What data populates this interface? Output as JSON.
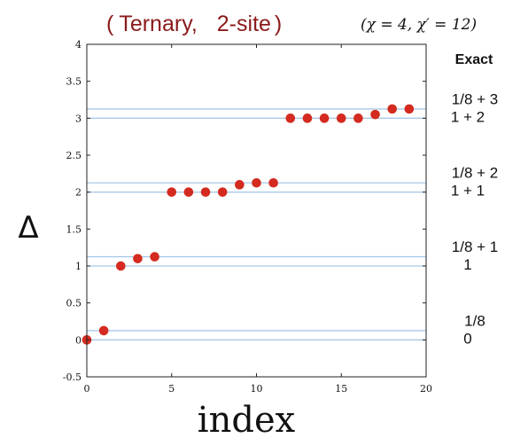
{
  "chart_data": {
    "type": "scatter",
    "title_main": "Ternary,",
    "title_site": "2-site",
    "title_open": "(",
    "title_close": ")",
    "title_params": "(χ = 4, χ′ = 12)",
    "xlabel": "index",
    "ylabel": "Δ",
    "xlim": [
      0,
      20
    ],
    "ylim": [
      -0.5,
      4
    ],
    "xticks": [
      "0",
      "5",
      "10",
      "15",
      "20"
    ],
    "yticks": [
      "-0.5",
      "0",
      "0.5",
      "1",
      "1.5",
      "2",
      "2.5",
      "3",
      "3.5",
      "4"
    ],
    "grid": false,
    "x": [
      0,
      1,
      2,
      3,
      4,
      5,
      6,
      7,
      8,
      9,
      10,
      11,
      12,
      13,
      14,
      15,
      16,
      17,
      18,
      19
    ],
    "y": [
      0.0,
      0.125,
      1.0,
      1.1,
      1.125,
      2.0,
      2.0,
      2.0,
      2.0,
      2.1,
      2.125,
      2.125,
      3.0,
      3.0,
      3.0,
      3.0,
      3.0,
      3.05,
      3.125,
      3.125
    ],
    "reference_lines": [
      0,
      0.125,
      1,
      1.125,
      2,
      2.125,
      3,
      3.125
    ],
    "exact_header": "Exact",
    "exact_labels": [
      {
        "value": 3,
        "top": "1/8 + 3",
        "bottom": "1 + 2"
      },
      {
        "value": 2,
        "top": "1/8 + 2",
        "bottom": "1 + 1"
      },
      {
        "value": 1,
        "top": "1/8 + 1",
        "bottom": "1"
      },
      {
        "value": 0,
        "top": "1/8",
        "bottom": "0"
      }
    ],
    "colors": {
      "points": "#d42a1f",
      "lines": "#a9c9e8",
      "title_accent": "#8b1a1a"
    }
  }
}
